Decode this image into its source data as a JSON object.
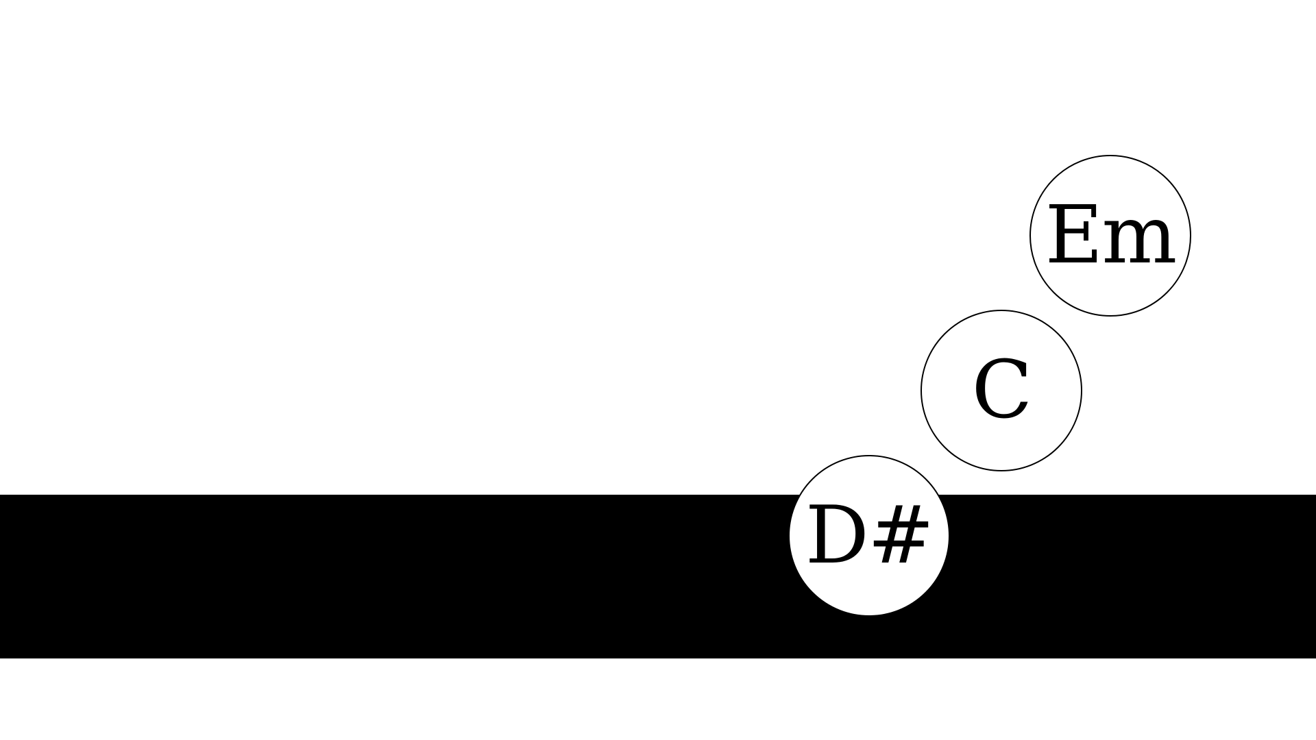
{
  "colors": {
    "background": "#ffffff",
    "lane": "#000000",
    "bubble_fill": "#ffffff",
    "bubble_border": "#000000",
    "text": "#000000"
  },
  "chords": [
    {
      "label": "Em"
    },
    {
      "label": "C"
    },
    {
      "label": "D#"
    }
  ]
}
